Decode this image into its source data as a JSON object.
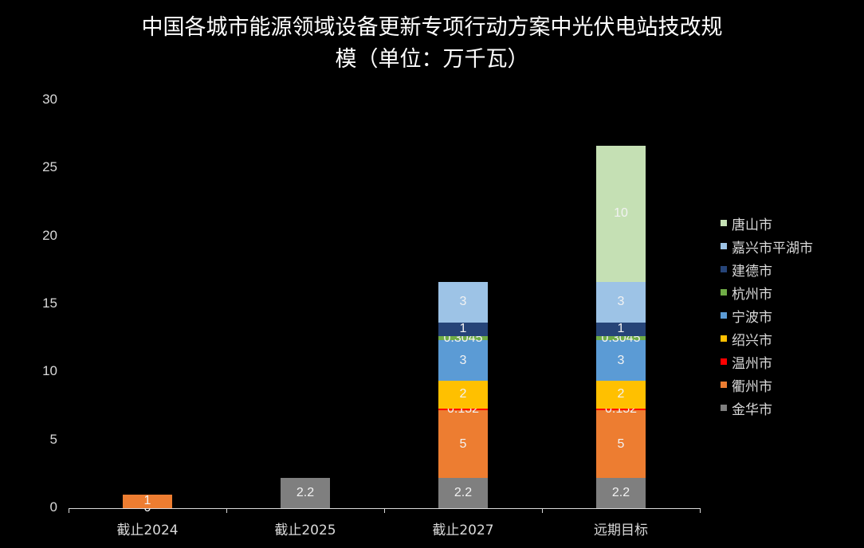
{
  "chart_data": {
    "type": "bar",
    "stacked": true,
    "title": "中国各城市能源领域设备更新专项行动方案中光伏电站技改规模（单位：万千瓦）",
    "title_lines": [
      "中国各城市能源领域设备更新专项行动方案中光伏电站技改规",
      "模（单位：万千瓦）"
    ],
    "xlabel": "",
    "ylabel": "",
    "ylim": [
      0,
      30
    ],
    "yticks": [
      "0",
      "5",
      "10",
      "15",
      "20",
      "25",
      "30"
    ],
    "categories": [
      "截止2024",
      "截止2025",
      "截止2027",
      "远期目标"
    ],
    "legend_position": "right",
    "grid": false,
    "series": [
      {
        "name": "金华市",
        "color": "#7f7f7f",
        "values": [
          0,
          2.2,
          2.2,
          2.2
        ]
      },
      {
        "name": "衢州市",
        "color": "#ed7d31",
        "values": [
          1,
          null,
          5,
          5
        ]
      },
      {
        "name": "温州市",
        "color": "#ff0000",
        "values": [
          null,
          null,
          0.152,
          0.152
        ]
      },
      {
        "name": "绍兴市",
        "color": "#ffc000",
        "values": [
          null,
          null,
          2,
          2
        ]
      },
      {
        "name": "宁波市",
        "color": "#5b9bd5",
        "values": [
          null,
          null,
          3,
          3
        ]
      },
      {
        "name": "杭州市",
        "color": "#70ad47",
        "values": [
          null,
          null,
          0.3045,
          0.3045
        ]
      },
      {
        "name": "建德市",
        "color": "#264478",
        "values": [
          null,
          null,
          1,
          1
        ]
      },
      {
        "name": "嘉兴市平湖市",
        "color": "#9dc3e6",
        "values": [
          null,
          null,
          3,
          3
        ]
      },
      {
        "name": "唐山市",
        "color": "#c5e0b4",
        "values": [
          null,
          null,
          null,
          10
        ]
      }
    ],
    "data_labels": [
      [
        "0",
        "1"
      ],
      [
        "2.2"
      ],
      [
        "2.2",
        "5",
        "0.152",
        "2",
        "3",
        "0.3045",
        "1",
        "3"
      ],
      [
        "2.2",
        "5",
        "0.152",
        "2",
        "3",
        "0.3045",
        "1",
        "3",
        "10"
      ]
    ]
  },
  "legend": {
    "items": [
      "唐山市",
      "嘉兴市平湖市",
      "建德市",
      "杭州市",
      "宁波市",
      "绍兴市",
      "温州市",
      "衢州市",
      "金华市"
    ]
  }
}
